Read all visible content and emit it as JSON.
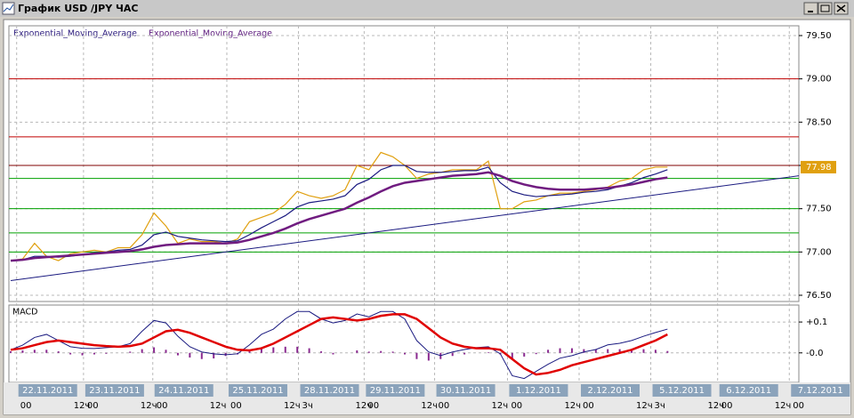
{
  "window": {
    "title": "График USD /JPY ЧАС"
  },
  "time_axis": {
    "days": [
      {
        "x": 0.5,
        "label": "22.11.2011",
        "times": [
          "00",
          "12ч"
        ]
      },
      {
        "x": 6.1,
        "label": "23.11.2011",
        "times": [
          "00",
          "12ч"
        ]
      },
      {
        "x": 11.9,
        "label": "24.11.2011",
        "times": [
          "00",
          "12ч"
        ]
      },
      {
        "x": 18.1,
        "label": "25.11.2011",
        "times": [
          "00",
          "12ч"
        ]
      },
      {
        "x": 24.1,
        "label": "28.11.2011",
        "times": [
          "3ч",
          "12ч"
        ]
      },
      {
        "x": 29.6,
        "label": "29.11.2011",
        "times": [
          "00",
          "12ч"
        ]
      },
      {
        "x": 35.5,
        "label": "30.11.2011",
        "times": [
          "00",
          "12ч"
        ]
      },
      {
        "x": 41.6,
        "label": "1.12.2011",
        "times": [
          "00",
          "12ч"
        ]
      },
      {
        "x": 47.6,
        "label": "2.12.2011",
        "times": [
          "00",
          "12ч"
        ]
      },
      {
        "x": 53.6,
        "label": "5.12.2011",
        "times": [
          "3ч",
          "12ч"
        ]
      },
      {
        "x": 59.2,
        "label": "6.12.2011",
        "times": [
          "00",
          "12ч"
        ]
      },
      {
        "x": 65.2,
        "label": "7.12.2011",
        "times": [
          "00"
        ]
      }
    ]
  },
  "chart_data": [
    {
      "type": "line",
      "x": [
        0,
        1,
        2,
        3,
        4,
        5,
        6,
        7,
        8,
        9,
        10,
        11,
        12,
        13,
        14,
        15,
        16,
        17,
        18,
        19,
        20,
        21,
        22,
        23,
        24,
        25,
        26,
        27,
        28,
        29,
        30,
        31,
        32,
        33,
        34,
        35,
        36,
        37,
        38,
        39,
        40,
        41,
        42,
        43,
        44,
        45,
        46,
        47,
        48,
        49,
        50,
        51,
        52,
        53,
        54,
        55
      ],
      "xlim": [
        0,
        66
      ],
      "ylim": [
        76.5,
        79.5
      ],
      "yticks": [
        {
          "value": 76.5,
          "label": "76.50"
        },
        {
          "value": 77,
          "label": "77.00"
        },
        {
          "value": 77.5,
          "label": "77.50"
        },
        {
          "value": 78,
          "label": "78.00"
        },
        {
          "value": 78.5,
          "label": "78.50"
        },
        {
          "value": 79,
          "label": "79.00"
        },
        {
          "value": 79.5,
          "label": "79.50"
        }
      ],
      "grid": true,
      "series": [
        {
          "color": "#e0a010",
          "values": [
            76.9,
            76.92,
            77.1,
            76.95,
            76.9,
            76.98,
            77.0,
            77.02,
            77.0,
            77.05,
            77.05,
            77.2,
            77.45,
            77.3,
            77.1,
            77.15,
            77.12,
            77.12,
            77.1,
            77.15,
            77.35,
            77.4,
            77.45,
            77.55,
            77.7,
            77.65,
            77.62,
            77.65,
            77.72,
            78.0,
            77.95,
            78.15,
            78.1,
            78.0,
            77.85,
            77.9,
            77.92,
            77.95,
            77.95,
            77.95,
            78.05,
            77.5,
            77.5,
            77.58,
            77.6,
            77.65,
            77.68,
            77.68,
            77.7,
            77.72,
            77.75,
            77.82,
            77.85,
            77.95,
            77.98,
            77.98
          ]
        },
        {
          "name": "Exponential_Moving_Average",
          "color": "#1a1a80",
          "values": [
            76.9,
            76.91,
            76.95,
            76.95,
            76.94,
            76.95,
            76.97,
            76.99,
            77.0,
            77.02,
            77.03,
            77.08,
            77.2,
            77.23,
            77.18,
            77.16,
            77.14,
            77.13,
            77.12,
            77.13,
            77.2,
            77.28,
            77.35,
            77.42,
            77.52,
            77.57,
            77.59,
            77.61,
            77.65,
            77.78,
            77.84,
            77.95,
            78.0,
            78.0,
            77.93,
            77.92,
            77.92,
            77.93,
            77.94,
            77.94,
            77.98,
            77.8,
            77.7,
            77.66,
            77.64,
            77.65,
            77.66,
            77.67,
            77.69,
            77.7,
            77.72,
            77.76,
            77.8,
            77.86,
            77.9,
            77.95
          ]
        },
        {
          "name": "Exponential_Moving_Average",
          "color": "#701c80",
          "values": [
            76.9,
            76.91,
            76.93,
            76.94,
            76.95,
            76.96,
            76.97,
            76.98,
            76.99,
            77.0,
            77.01,
            77.03,
            77.06,
            77.08,
            77.09,
            77.1,
            77.1,
            77.1,
            77.1,
            77.11,
            77.14,
            77.18,
            77.22,
            77.27,
            77.33,
            77.38,
            77.42,
            77.46,
            77.5,
            77.57,
            77.63,
            77.7,
            77.76,
            77.8,
            77.82,
            77.84,
            77.86,
            77.88,
            77.89,
            77.9,
            77.92,
            77.88,
            77.82,
            77.78,
            77.75,
            77.73,
            77.72,
            77.72,
            77.72,
            77.73,
            77.74,
            77.76,
            77.78,
            77.81,
            77.84,
            77.86
          ]
        }
      ],
      "hlines": [
        {
          "value": 79.0,
          "color": "#c00000"
        },
        {
          "value": 78.33,
          "color": "#c00000"
        },
        {
          "value": 78.0,
          "color": "#800000"
        },
        {
          "value": 77.85,
          "color": "#00a000"
        },
        {
          "value": 77.5,
          "color": "#00a000"
        },
        {
          "value": 77.22,
          "color": "#00a000"
        },
        {
          "value": 77.0,
          "color": "#00a000"
        }
      ],
      "trendline": {
        "x": [
          0,
          66
        ],
        "values": [
          76.67,
          77.88
        ],
        "color": "#1a1a80"
      },
      "last_price": {
        "value": 77.98,
        "label": "77.98",
        "color": "#e0a010"
      }
    },
    {
      "type": "macd",
      "title": "MACD",
      "x": [
        0,
        1,
        2,
        3,
        4,
        5,
        6,
        7,
        8,
        9,
        10,
        11,
        12,
        13,
        14,
        15,
        16,
        17,
        18,
        19,
        20,
        21,
        22,
        23,
        24,
        25,
        26,
        27,
        28,
        29,
        30,
        31,
        32,
        33,
        34,
        35,
        36,
        37,
        38,
        39,
        40,
        41,
        42,
        43,
        44,
        45,
        46,
        47,
        48,
        49,
        50,
        51,
        52,
        53,
        54,
        55
      ],
      "xlim": [
        0,
        66
      ],
      "ylim": [
        -0.09,
        0.155
      ],
      "yticks": [
        {
          "value": 0,
          "label": "-0.0"
        },
        {
          "value": 0.1,
          "label": "+0.1"
        }
      ],
      "grid": true,
      "series": [
        {
          "color": "#8a2a90",
          "style": "bar",
          "values": [
            0.005,
            0.008,
            0.01,
            0.01,
            0.005,
            -0.005,
            -0.008,
            -0.005,
            -0.003,
            0,
            0.004,
            0.012,
            0.018,
            0.01,
            -0.008,
            -0.015,
            -0.02,
            -0.018,
            -0.01,
            -0.005,
            0.008,
            0.015,
            0.018,
            0.02,
            0.02,
            0.015,
            0.005,
            -0.005,
            0,
            0.008,
            0.004,
            0.006,
            0.004,
            -0.005,
            -0.02,
            -0.025,
            -0.02,
            -0.01,
            -0.005,
            0,
            0.002,
            -0.005,
            -0.02,
            -0.012,
            -0.004,
            0.01,
            0.015,
            0.015,
            0.012,
            0.012,
            0.012,
            0.012,
            0.012,
            0.012,
            0.01,
            0.006
          ]
        },
        {
          "color": "#1a1a80",
          "style": "line",
          "values": [
            0.01,
            0.025,
            0.05,
            0.06,
            0.04,
            0.02,
            0.015,
            0.014,
            0.017,
            0.02,
            0.03,
            0.07,
            0.105,
            0.097,
            0.054,
            0.02,
            0.003,
            -0.003,
            -0.006,
            -0.003,
            0.026,
            0.06,
            0.077,
            0.11,
            0.134,
            0.134,
            0.11,
            0.097,
            0.105,
            0.126,
            0.117,
            0.134,
            0.134,
            0.11,
            0.04,
            0.003,
            -0.009,
            0.003,
            0.011,
            0.017,
            0.02,
            -0.003,
            -0.074,
            -0.083,
            -0.06,
            -0.037,
            -0.017,
            -0.009,
            0.003,
            0.011,
            0.026,
            0.031,
            0.04,
            0.054,
            0.066,
            0.077
          ]
        },
        {
          "color": "#e00000",
          "style": "thick",
          "values": [
            0.01,
            0.015,
            0.025,
            0.035,
            0.04,
            0.035,
            0.03,
            0.025,
            0.022,
            0.02,
            0.022,
            0.03,
            0.05,
            0.07,
            0.075,
            0.065,
            0.05,
            0.035,
            0.02,
            0.01,
            0.008,
            0.015,
            0.03,
            0.05,
            0.07,
            0.09,
            0.11,
            0.115,
            0.11,
            0.105,
            0.11,
            0.12,
            0.125,
            0.125,
            0.11,
            0.08,
            0.05,
            0.03,
            0.02,
            0.015,
            0.015,
            0.01,
            -0.02,
            -0.05,
            -0.07,
            -0.065,
            -0.055,
            -0.04,
            -0.03,
            -0.02,
            -0.01,
            0,
            0.01,
            0.025,
            0.04,
            0.06
          ]
        }
      ]
    }
  ]
}
